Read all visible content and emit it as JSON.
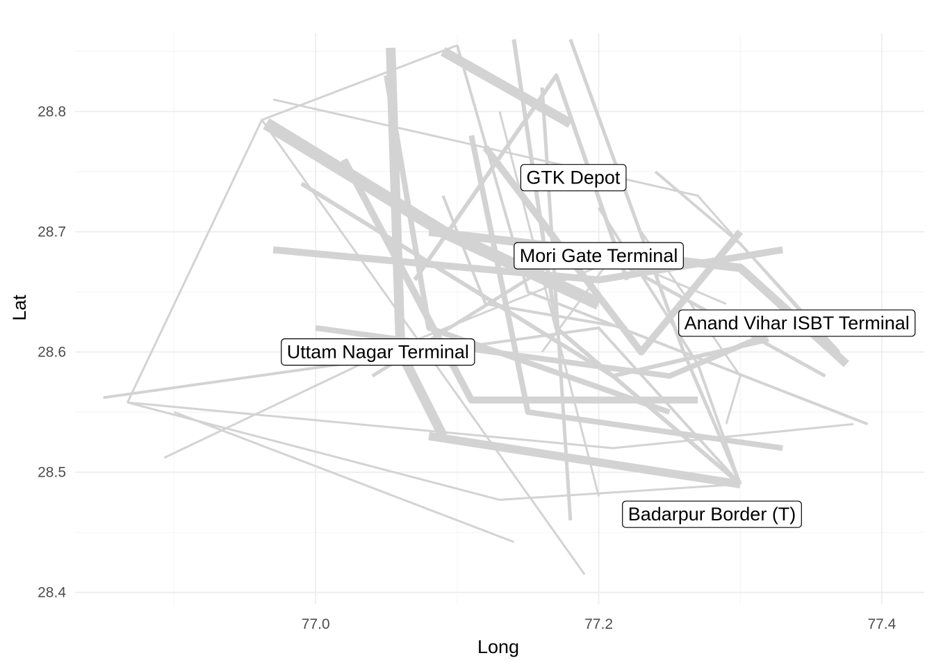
{
  "chart_data": {
    "type": "line",
    "title": "",
    "xlabel": "Long",
    "ylabel": "Lat",
    "xlim": [
      76.83,
      77.43
    ],
    "ylim": [
      28.39,
      28.865
    ],
    "x_ticks": [
      77.0,
      77.2,
      77.4
    ],
    "x_tick_labels": [
      "77.0",
      "77.2",
      "77.4"
    ],
    "y_ticks": [
      28.4,
      28.5,
      28.6,
      28.7,
      28.8
    ],
    "y_tick_labels": [
      "28.4",
      "28.5",
      "28.6",
      "28.7",
      "28.8"
    ],
    "grid": true,
    "legend": "none",
    "line_color": "#d3d3d3",
    "annotations": [
      {
        "label": "GTK Depot",
        "x": 77.182,
        "y": 28.745
      },
      {
        "label": "Mori Gate Terminal",
        "x": 77.2,
        "y": 28.68
      },
      {
        "label": "Anand Vihar ISBT Terminal",
        "x": 77.34,
        "y": 28.624
      },
      {
        "label": "Uttam Nagar Terminal",
        "x": 77.044,
        "y": 28.6
      },
      {
        "label": "Badarpur Border (T)",
        "x": 77.28,
        "y": 28.465
      }
    ],
    "routes": [
      {
        "w": 4,
        "pts": [
          [
            76.85,
            28.562
          ],
          [
            77.2,
            28.62
          ],
          [
            77.3,
            28.49
          ]
        ]
      },
      {
        "w": 3,
        "pts": [
          [
            76.867,
            28.558
          ],
          [
            76.962,
            28.793
          ],
          [
            77.1,
            28.855
          ]
        ]
      },
      {
        "w": 3,
        "pts": [
          [
            76.867,
            28.558
          ],
          [
            77.13,
            28.477
          ],
          [
            77.3,
            28.49
          ]
        ]
      },
      {
        "w": 3,
        "pts": [
          [
            76.893,
            28.512
          ],
          [
            77.05,
            28.6
          ],
          [
            77.24,
            28.69
          ]
        ]
      },
      {
        "w": 3,
        "pts": [
          [
            76.867,
            28.558
          ],
          [
            77.21,
            28.52
          ],
          [
            77.38,
            28.54
          ]
        ]
      },
      {
        "w": 3,
        "pts": [
          [
            76.9,
            28.55
          ],
          [
            77.14,
            28.442
          ]
        ]
      },
      {
        "w": 3,
        "pts": [
          [
            76.962,
            28.793
          ],
          [
            77.19,
            28.415
          ]
        ]
      },
      {
        "w": 3,
        "pts": [
          [
            76.97,
            28.81
          ],
          [
            77.27,
            28.73
          ],
          [
            77.375,
            28.59
          ]
        ]
      },
      {
        "w": 18,
        "pts": [
          [
            76.965,
            28.79
          ],
          [
            77.09,
            28.7
          ],
          [
            77.2,
            28.64
          ]
        ]
      },
      {
        "w": 14,
        "pts": [
          [
            77.053,
            28.853
          ],
          [
            77.06,
            28.6
          ],
          [
            77.09,
            28.53
          ]
        ]
      },
      {
        "w": 14,
        "pts": [
          [
            77.09,
            28.85
          ],
          [
            77.18,
            28.79
          ]
        ]
      },
      {
        "w": 12,
        "pts": [
          [
            77.08,
            28.7
          ],
          [
            77.3,
            28.67
          ],
          [
            77.375,
            28.59
          ]
        ]
      },
      {
        "w": 12,
        "pts": [
          [
            77.08,
            28.53
          ],
          [
            77.3,
            28.49
          ]
        ]
      },
      {
        "w": 10,
        "pts": [
          [
            76.97,
            28.685
          ],
          [
            77.2,
            28.66
          ],
          [
            77.33,
            28.685
          ]
        ]
      },
      {
        "w": 10,
        "pts": [
          [
            77.02,
            28.76
          ],
          [
            77.11,
            28.56
          ],
          [
            77.27,
            28.56
          ]
        ]
      },
      {
        "w": 10,
        "pts": [
          [
            77.12,
            28.77
          ],
          [
            77.23,
            28.6
          ],
          [
            77.3,
            28.7
          ]
        ]
      },
      {
        "w": 8,
        "pts": [
          [
            77.0,
            28.62
          ],
          [
            77.25,
            28.58
          ],
          [
            77.35,
            28.63
          ]
        ]
      },
      {
        "w": 8,
        "pts": [
          [
            77.05,
            28.83
          ],
          [
            77.08,
            28.62
          ],
          [
            77.25,
            28.55
          ]
        ]
      },
      {
        "w": 8,
        "pts": [
          [
            77.11,
            28.78
          ],
          [
            77.15,
            28.55
          ],
          [
            77.33,
            28.52
          ]
        ]
      },
      {
        "w": 6,
        "pts": [
          [
            76.99,
            28.74
          ],
          [
            77.21,
            28.58
          ],
          [
            77.32,
            28.61
          ]
        ]
      },
      {
        "w": 6,
        "pts": [
          [
            77.14,
            28.86
          ],
          [
            77.17,
            28.62
          ],
          [
            77.3,
            28.49
          ]
        ]
      },
      {
        "w": 6,
        "pts": [
          [
            77.07,
            28.66
          ],
          [
            77.17,
            28.83
          ],
          [
            77.22,
            28.66
          ]
        ]
      },
      {
        "w": 5,
        "pts": [
          [
            77.18,
            28.86
          ],
          [
            77.26,
            28.6
          ],
          [
            77.3,
            28.49
          ]
        ]
      },
      {
        "w": 5,
        "pts": [
          [
            77.04,
            28.58
          ],
          [
            77.19,
            28.69
          ],
          [
            77.36,
            28.58
          ]
        ]
      },
      {
        "w": 5,
        "pts": [
          [
            77.16,
            28.82
          ],
          [
            77.18,
            28.46
          ]
        ]
      },
      {
        "w": 4,
        "pts": [
          [
            77.24,
            28.75
          ],
          [
            77.3,
            28.69
          ],
          [
            77.37,
            28.6
          ]
        ]
      },
      {
        "w": 4,
        "pts": [
          [
            77.1,
            28.855
          ],
          [
            77.15,
            28.65
          ],
          [
            77.39,
            28.54
          ]
        ]
      },
      {
        "w": 4,
        "pts": [
          [
            77.2,
            28.72
          ],
          [
            77.27,
            28.59
          ],
          [
            77.3,
            28.49
          ]
        ]
      },
      {
        "w": 4,
        "pts": [
          [
            77.09,
            28.73
          ],
          [
            77.12,
            28.64
          ],
          [
            77.22,
            28.62
          ]
        ]
      },
      {
        "w": 3,
        "pts": [
          [
            77.13,
            28.8
          ],
          [
            77.2,
            28.48
          ]
        ]
      },
      {
        "w": 3,
        "pts": [
          [
            77.23,
            28.7
          ],
          [
            77.3,
            28.58
          ],
          [
            77.29,
            28.54
          ]
        ]
      },
      {
        "w": 3,
        "pts": [
          [
            77.16,
            28.6
          ],
          [
            77.21,
            28.68
          ],
          [
            77.29,
            28.64
          ]
        ]
      }
    ]
  }
}
